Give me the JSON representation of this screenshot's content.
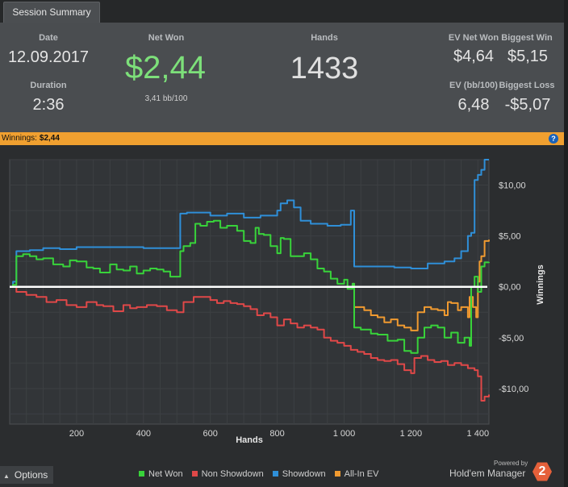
{
  "tab": {
    "title": "Session Summary"
  },
  "summary": {
    "date_label": "Date",
    "date_value": "12.09.2017",
    "duration_label": "Duration",
    "duration_value": "2:36",
    "netwon_label": "Net Won",
    "netwon_value": "$2,44",
    "netwon_sub": "3,41 bb/100",
    "hands_label": "Hands",
    "hands_value": "1433",
    "ev_netwon_label": "EV Net Won",
    "ev_netwon_value": "$4,64",
    "biggest_win_label": "Biggest Win",
    "biggest_win_value": "$5,15",
    "ev_bb_label": "EV (bb/100)",
    "ev_bb_value": "6,48",
    "biggest_loss_label": "Biggest Loss",
    "biggest_loss_value": "-$5,07"
  },
  "winbar": {
    "label": "Winnings:",
    "value": "$2,44",
    "help": "?"
  },
  "colors": {
    "netwon": "#38d33a",
    "non_showdown": "#e04848",
    "showdown": "#2f8fd8",
    "allin_ev": "#f09a30",
    "accent_bar": "#f0a030",
    "netwon_text": "#7de07a"
  },
  "chart_data": {
    "type": "line",
    "xlabel": "Hands",
    "ylabel": "Winnings",
    "xlim": [
      0,
      1433
    ],
    "ylim": [
      -13.5,
      12.5
    ],
    "x_ticks": [
      200,
      400,
      600,
      800,
      1000,
      1200,
      1400
    ],
    "x_tick_labels": [
      "200",
      "400",
      "600",
      "800",
      "1 000",
      "1 200",
      "1 400"
    ],
    "y_ticks": [
      10,
      5,
      0,
      -5,
      -10
    ],
    "y_tick_labels": [
      "$10,00",
      "$5,00",
      "$0,00",
      "-$5,00",
      "-$10,00"
    ],
    "legend_position": "bottom",
    "series": [
      {
        "name": "Net Won",
        "color": "#38d33a",
        "points": [
          [
            0,
            0
          ],
          [
            10,
            0.2
          ],
          [
            20,
            3.0
          ],
          [
            40,
            3.2
          ],
          [
            60,
            3.0
          ],
          [
            80,
            2.7
          ],
          [
            100,
            2.8
          ],
          [
            130,
            2.2
          ],
          [
            160,
            2.0
          ],
          [
            180,
            2.6
          ],
          [
            200,
            2.5
          ],
          [
            230,
            1.9
          ],
          [
            250,
            1.8
          ],
          [
            270,
            1.4
          ],
          [
            300,
            2.2
          ],
          [
            320,
            1.7
          ],
          [
            340,
            1.6
          ],
          [
            360,
            2.0
          ],
          [
            380,
            1.3
          ],
          [
            400,
            1.6
          ],
          [
            420,
            1.8
          ],
          [
            440,
            1.7
          ],
          [
            460,
            1.5
          ],
          [
            480,
            1.0
          ],
          [
            505,
            1.0
          ],
          [
            510,
            3.5
          ],
          [
            520,
            4.0
          ],
          [
            540,
            4.3
          ],
          [
            555,
            6.2
          ],
          [
            570,
            6.0
          ],
          [
            590,
            6.4
          ],
          [
            610,
            6.5
          ],
          [
            630,
            5.8
          ],
          [
            650,
            6.0
          ],
          [
            680,
            5.5
          ],
          [
            700,
            4.5
          ],
          [
            720,
            4.3
          ],
          [
            735,
            5.8
          ],
          [
            745,
            5.2
          ],
          [
            760,
            5.1
          ],
          [
            780,
            4.0
          ],
          [
            800,
            3.3
          ],
          [
            810,
            4.8
          ],
          [
            820,
            4.7
          ],
          [
            840,
            3.0
          ],
          [
            860,
            3.0
          ],
          [
            880,
            3.3
          ],
          [
            900,
            2.7
          ],
          [
            920,
            1.8
          ],
          [
            940,
            1.5
          ],
          [
            960,
            0.8
          ],
          [
            980,
            0.3
          ],
          [
            1000,
            0.7
          ],
          [
            1010,
            -0.2
          ],
          [
            1025,
            0.3
          ],
          [
            1030,
            -4.0
          ],
          [
            1050,
            -4.2
          ],
          [
            1080,
            -4.6
          ],
          [
            1100,
            -4.7
          ],
          [
            1130,
            -5.3
          ],
          [
            1160,
            -5.2
          ],
          [
            1180,
            -6.3
          ],
          [
            1200,
            -6.5
          ],
          [
            1220,
            -5.0
          ],
          [
            1240,
            -4.0
          ],
          [
            1260,
            -3.8
          ],
          [
            1280,
            -4.0
          ],
          [
            1300,
            -5.0
          ],
          [
            1320,
            -4.5
          ],
          [
            1340,
            -5.5
          ],
          [
            1360,
            -5.0
          ],
          [
            1375,
            -5.8
          ],
          [
            1380,
            0.0
          ],
          [
            1390,
            1.0
          ],
          [
            1400,
            -0.5
          ],
          [
            1410,
            2.0
          ],
          [
            1420,
            2.4
          ],
          [
            1433,
            2.44
          ]
        ]
      },
      {
        "name": "Non Showdown",
        "color": "#e04848",
        "points": [
          [
            0,
            0
          ],
          [
            20,
            -0.5
          ],
          [
            50,
            -0.8
          ],
          [
            80,
            -1.0
          ],
          [
            110,
            -1.5
          ],
          [
            140,
            -1.3
          ],
          [
            170,
            -1.8
          ],
          [
            200,
            -2.0
          ],
          [
            230,
            -1.5
          ],
          [
            260,
            -1.8
          ],
          [
            280,
            -1.9
          ],
          [
            310,
            -2.4
          ],
          [
            340,
            -1.8
          ],
          [
            360,
            -2.1
          ],
          [
            380,
            -2.0
          ],
          [
            410,
            -1.8
          ],
          [
            440,
            -1.9
          ],
          [
            470,
            -2.3
          ],
          [
            500,
            -2.5
          ],
          [
            520,
            -1.5
          ],
          [
            550,
            -1.0
          ],
          [
            580,
            -1.0
          ],
          [
            600,
            -1.3
          ],
          [
            620,
            -1.6
          ],
          [
            640,
            -1.4
          ],
          [
            660,
            -1.6
          ],
          [
            680,
            -1.7
          ],
          [
            700,
            -1.9
          ],
          [
            720,
            -2.2
          ],
          [
            740,
            -2.8
          ],
          [
            760,
            -2.6
          ],
          [
            780,
            -3.0
          ],
          [
            800,
            -3.8
          ],
          [
            820,
            -3.2
          ],
          [
            840,
            -3.6
          ],
          [
            860,
            -4.0
          ],
          [
            880,
            -3.8
          ],
          [
            900,
            -4.0
          ],
          [
            920,
            -4.2
          ],
          [
            940,
            -5.0
          ],
          [
            960,
            -5.3
          ],
          [
            980,
            -5.5
          ],
          [
            1000,
            -5.8
          ],
          [
            1020,
            -6.2
          ],
          [
            1040,
            -6.4
          ],
          [
            1060,
            -6.6
          ],
          [
            1080,
            -7.0
          ],
          [
            1100,
            -7.2
          ],
          [
            1120,
            -7.3
          ],
          [
            1140,
            -7.2
          ],
          [
            1160,
            -7.6
          ],
          [
            1180,
            -8.2
          ],
          [
            1200,
            -8.5
          ],
          [
            1210,
            -7.0
          ],
          [
            1230,
            -6.8
          ],
          [
            1250,
            -7.2
          ],
          [
            1270,
            -7.4
          ],
          [
            1290,
            -7.3
          ],
          [
            1310,
            -7.7
          ],
          [
            1330,
            -7.5
          ],
          [
            1350,
            -7.7
          ],
          [
            1370,
            -8.0
          ],
          [
            1390,
            -8.2
          ],
          [
            1400,
            -8.8
          ],
          [
            1410,
            -11.2
          ],
          [
            1420,
            -10.8
          ],
          [
            1433,
            -10.6
          ]
        ]
      },
      {
        "name": "Showdown",
        "color": "#2f8fd8",
        "points": [
          [
            0,
            0
          ],
          [
            10,
            0.5
          ],
          [
            20,
            3.5
          ],
          [
            60,
            3.6
          ],
          [
            100,
            3.8
          ],
          [
            150,
            3.7
          ],
          [
            200,
            3.9
          ],
          [
            300,
            3.9
          ],
          [
            400,
            3.8
          ],
          [
            500,
            3.8
          ],
          [
            510,
            7.2
          ],
          [
            530,
            7.3
          ],
          [
            600,
            7.0
          ],
          [
            650,
            7.2
          ],
          [
            700,
            6.8
          ],
          [
            750,
            7.0
          ],
          [
            800,
            7.5
          ],
          [
            810,
            8.2
          ],
          [
            830,
            8.5
          ],
          [
            850,
            7.8
          ],
          [
            870,
            6.5
          ],
          [
            900,
            6.2
          ],
          [
            950,
            6.0
          ],
          [
            990,
            6.1
          ],
          [
            1020,
            7.5
          ],
          [
            1030,
            2.0
          ],
          [
            1080,
            2.0
          ],
          [
            1150,
            1.9
          ],
          [
            1200,
            1.8
          ],
          [
            1250,
            2.3
          ],
          [
            1300,
            2.5
          ],
          [
            1330,
            2.8
          ],
          [
            1350,
            3.5
          ],
          [
            1370,
            5.0
          ],
          [
            1380,
            5.3
          ],
          [
            1390,
            10.5
          ],
          [
            1400,
            11.0
          ],
          [
            1410,
            11.5
          ],
          [
            1420,
            12.5
          ],
          [
            1433,
            13.0
          ]
        ]
      },
      {
        "name": "All-In EV",
        "color": "#f09a30",
        "points": [
          [
            1025,
            0.3
          ],
          [
            1030,
            -2.0
          ],
          [
            1060,
            -2.3
          ],
          [
            1080,
            -2.8
          ],
          [
            1100,
            -3.0
          ],
          [
            1120,
            -3.5
          ],
          [
            1140,
            -3.2
          ],
          [
            1160,
            -3.8
          ],
          [
            1180,
            -4.0
          ],
          [
            1200,
            -4.3
          ],
          [
            1220,
            -2.5
          ],
          [
            1240,
            -2.0
          ],
          [
            1260,
            -2.2
          ],
          [
            1280,
            -2.3
          ],
          [
            1300,
            -2.8
          ],
          [
            1310,
            -1.5
          ],
          [
            1320,
            -1.6
          ],
          [
            1340,
            -2.3
          ],
          [
            1350,
            -2.0
          ],
          [
            1370,
            -3.0
          ],
          [
            1375,
            -1.0
          ],
          [
            1385,
            -2.0
          ],
          [
            1395,
            -3.0
          ],
          [
            1400,
            0.5
          ],
          [
            1405,
            2.5
          ],
          [
            1410,
            3.0
          ],
          [
            1420,
            4.5
          ],
          [
            1433,
            4.64
          ]
        ]
      }
    ]
  },
  "bottom": {
    "options_label": "Options",
    "powered_by": "Powered by",
    "brand": "Hold'em Manager",
    "brand_badge": "2"
  }
}
